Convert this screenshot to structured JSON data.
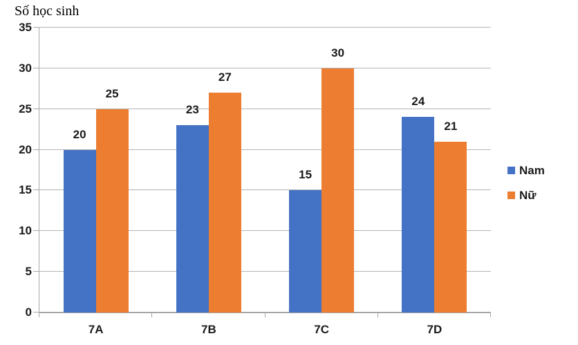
{
  "title": "Số học sinh",
  "chart_data": {
    "type": "bar",
    "title": "Số học sinh",
    "categories": [
      "7A",
      "7B",
      "7C",
      "7D"
    ],
    "series": [
      {
        "name": "Nam",
        "color": "#4472C4",
        "values": [
          20,
          23,
          15,
          24
        ]
      },
      {
        "name": "Nữ",
        "color": "#ED7D31",
        "values": [
          25,
          27,
          30,
          21
        ]
      }
    ],
    "ylabel": "Số học sinh",
    "ylim": [
      0,
      35
    ],
    "yticks": [
      0,
      5,
      10,
      15,
      20,
      25,
      30,
      35
    ],
    "grid": true,
    "legend_position": "right",
    "data_labels": true
  },
  "colors": {
    "axis": "#a6a6a6",
    "gridline": "#b3b3b3",
    "label_text": "#1a1a1a",
    "title_text": "#000000",
    "background": "#ffffff"
  }
}
